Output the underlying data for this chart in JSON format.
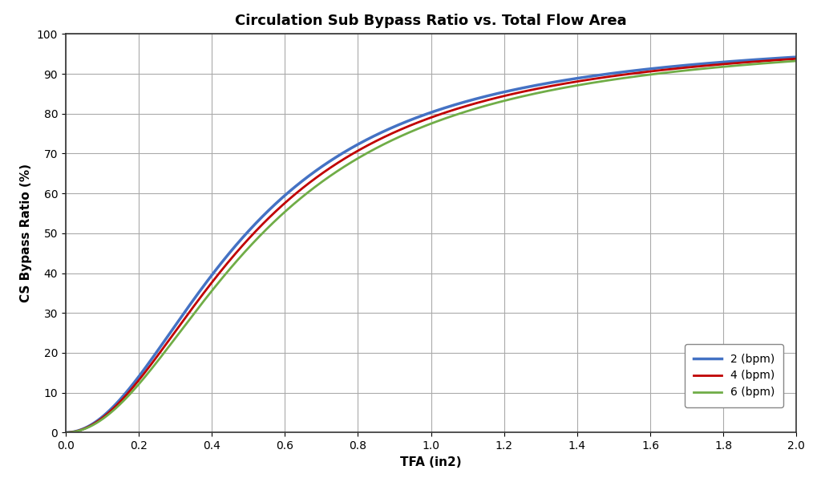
{
  "title": "Circulation Sub Bypass Ratio vs. Total Flow Area",
  "xlabel": "TFA (in2)",
  "ylabel": "CS Bypass Ratio (%)",
  "xlim": [
    0.0,
    2.0
  ],
  "ylim": [
    0,
    100
  ],
  "xticks": [
    0.0,
    0.2,
    0.4,
    0.6,
    0.8,
    1.0,
    1.2,
    1.4,
    1.6,
    1.8,
    2.0
  ],
  "yticks": [
    0,
    10,
    20,
    30,
    40,
    50,
    60,
    70,
    80,
    90,
    100
  ],
  "series": [
    {
      "label": "2 (bpm)",
      "color": "#4472C4",
      "k": 0.245,
      "linewidth": 2.5
    },
    {
      "label": "4 (bpm)",
      "color": "#C00000",
      "k": 0.265,
      "linewidth": 2.0
    },
    {
      "label": "6 (bpm)",
      "color": "#70AD47",
      "k": 0.29,
      "linewidth": 2.0
    }
  ],
  "grid_color": "#AAAAAA",
  "background_color": "#FFFFFF",
  "title_fontsize": 13,
  "axis_label_fontsize": 11,
  "tick_fontsize": 10,
  "legend_fontsize": 10
}
